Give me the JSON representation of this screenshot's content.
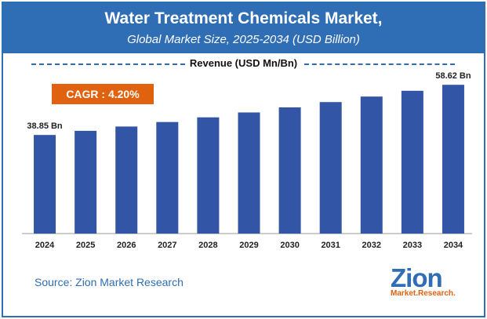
{
  "chart_data": {
    "type": "bar",
    "title": "Water Treatment Chemicals Market,",
    "subtitle": "Global Market Size, 2025-2034 (USD Billion)",
    "ylabel": "Revenue (USD Mn/Bn)",
    "categories": [
      "2024",
      "2025",
      "2026",
      "2027",
      "2028",
      "2029",
      "2030",
      "2031",
      "2032",
      "2033",
      "2034"
    ],
    "values": [
      38.85,
      40.48,
      42.18,
      43.95,
      45.8,
      47.72,
      49.72,
      51.81,
      53.99,
      56.26,
      58.62
    ],
    "value_labels": {
      "first": "38.85 Bn",
      "last": "58.62 Bn"
    },
    "ylim": [
      0,
      63
    ],
    "grid": false,
    "bar_color": "#3355a6"
  },
  "cagr_label": "CAGR : 4.20%",
  "source": "Source: Zion Market Research",
  "logo": {
    "main": "Zion",
    "sub": "Market.Research."
  },
  "colors": {
    "header": "#2f6db5",
    "accent": "#e0620f"
  }
}
